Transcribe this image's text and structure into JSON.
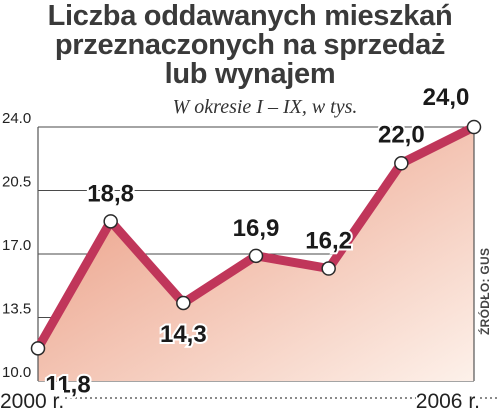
{
  "title_lines": [
    "Liczba oddawanych mieszkań",
    "przeznaczonych na sprzedaż",
    "lub wynajem"
  ],
  "subtitle": "W okresie I – IX, w tys.",
  "source": "ŹRÓDŁO: GUS",
  "colors": {
    "line": "#c0365a",
    "area_top": "#e9957a",
    "area_bottom": "#fdf1ea",
    "marker_fill": "#ffffff"
  },
  "chart_data": {
    "type": "line",
    "title": "Liczba oddawanych mieszkań przeznaczonych na sprzedaż lub wynajem",
    "subtitle": "W okresie I – IX, w tys.",
    "x": [
      "2000",
      "2001",
      "2002",
      "2003",
      "2004",
      "2005",
      "2006"
    ],
    "x_tick_labels": [
      "2000 r.",
      "2006 r."
    ],
    "values": [
      11.8,
      18.8,
      14.3,
      16.9,
      16.2,
      22.0,
      24.0
    ],
    "data_labels": [
      "11,8",
      "18,8",
      "14,3",
      "16,9",
      "16,2",
      "22,0",
      "24,0"
    ],
    "y_ticks": [
      "10.0",
      "13.5",
      "17.0",
      "20.5",
      "24.0"
    ],
    "ylim": [
      10.0,
      24.0
    ],
    "grid": true,
    "legend": "none"
  }
}
